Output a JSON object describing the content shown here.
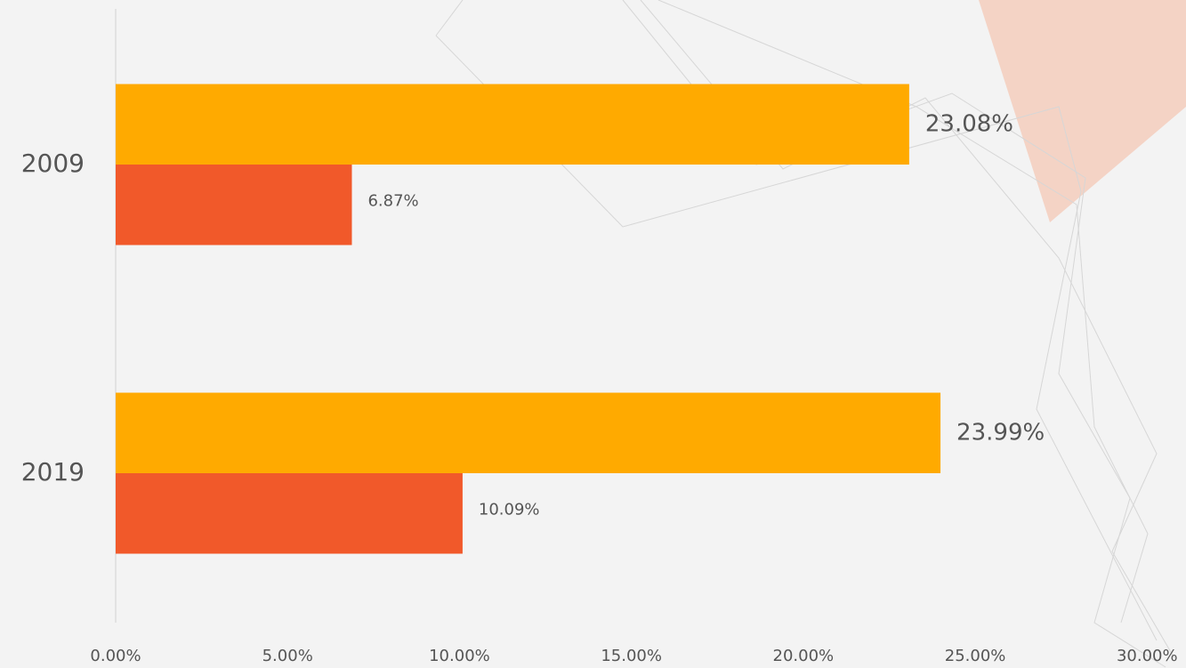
{
  "chart_data": {
    "type": "bar",
    "orientation": "horizontal",
    "categories": [
      "2009",
      "2019"
    ],
    "series": [
      {
        "color": "#ffaa00",
        "values": [
          23.08,
          23.99
        ],
        "value_labels": [
          "23.08%",
          "23.99%"
        ]
      },
      {
        "color": "#f1592a",
        "values": [
          6.87,
          10.09
        ],
        "value_labels": [
          "6.87%",
          "10.09%"
        ]
      }
    ],
    "xlim": [
      0,
      30
    ],
    "xticks": [
      {
        "value": 0,
        "label": "0.00%"
      },
      {
        "value": 5,
        "label": "5.00%"
      },
      {
        "value": 10,
        "label": "10.00%"
      },
      {
        "value": 15,
        "label": "15.00%"
      },
      {
        "value": 20,
        "label": "20.00%"
      },
      {
        "value": 25,
        "label": "25.00%"
      },
      {
        "value": 30,
        "label": "30.00%"
      }
    ],
    "grid": false
  }
}
